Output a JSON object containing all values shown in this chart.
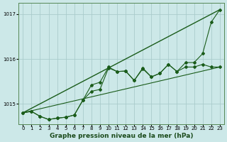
{
  "background_color": "#cce8e8",
  "grid_color": "#aacccc",
  "line_color": "#1a5c1a",
  "title": "Graphe pression niveau de la mer (hPa)",
  "xlim": [
    -0.5,
    23.5
  ],
  "ylim": [
    1014.55,
    1017.25
  ],
  "xticks": [
    0,
    1,
    2,
    3,
    4,
    5,
    6,
    7,
    8,
    9,
    10,
    11,
    12,
    13,
    14,
    15,
    16,
    17,
    18,
    19,
    20,
    21,
    22,
    23
  ],
  "yticks": [
    1015,
    1016,
    1017
  ],
  "line1_x": [
    0,
    23
  ],
  "line1_y": [
    1014.8,
    1017.1
  ],
  "line2_x": [
    0,
    23
  ],
  "line2_y": [
    1014.8,
    1015.82
  ],
  "line3_x": [
    0,
    1,
    2,
    3,
    4,
    5,
    6,
    7,
    8,
    9,
    10,
    11,
    12,
    13,
    14,
    15,
    16,
    17,
    18,
    19,
    20,
    21,
    22,
    23
  ],
  "line3_y": [
    1014.8,
    1014.83,
    1014.72,
    1014.65,
    1014.68,
    1014.7,
    1014.75,
    1015.08,
    1015.28,
    1015.32,
    1015.8,
    1015.72,
    1015.73,
    1015.52,
    1015.8,
    1015.6,
    1015.68,
    1015.88,
    1015.72,
    1015.82,
    1015.82,
    1015.88,
    1015.82,
    1015.82
  ],
  "line4_x": [
    0,
    1,
    2,
    3,
    4,
    5,
    6,
    7,
    8,
    9,
    10,
    11,
    12,
    13,
    14,
    15,
    16,
    17,
    18,
    19,
    20,
    21,
    22,
    23
  ],
  "line4_y": [
    1014.8,
    1014.83,
    1014.72,
    1014.65,
    1014.68,
    1014.7,
    1014.75,
    1015.08,
    1015.42,
    1015.48,
    1015.82,
    1015.72,
    1015.73,
    1015.52,
    1015.78,
    1015.6,
    1015.68,
    1015.88,
    1015.72,
    1015.92,
    1015.92,
    1016.12,
    1016.82,
    1017.1
  ],
  "title_fontsize": 6.5,
  "tick_fontsize": 5.0
}
